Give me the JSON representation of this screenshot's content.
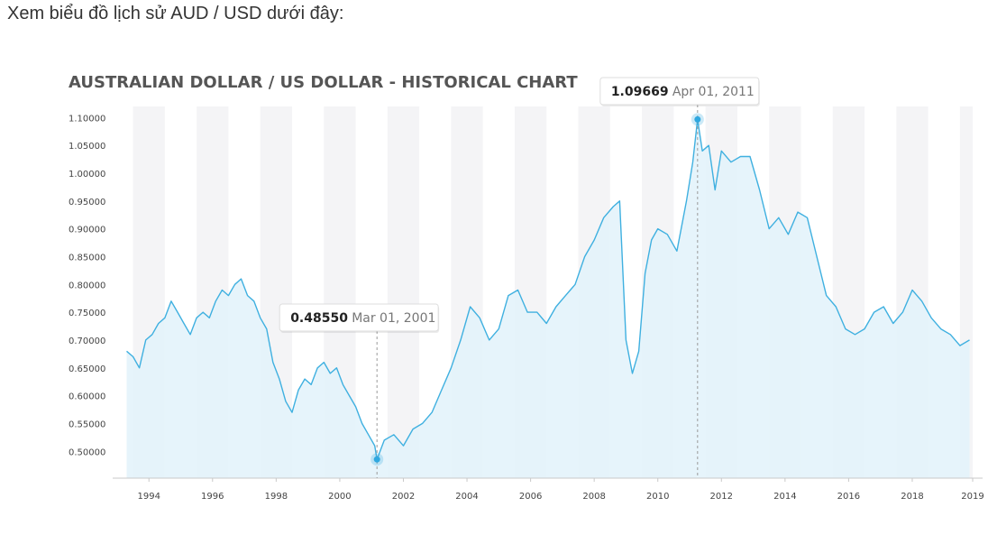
{
  "intro_text": "Xem biểu đồ lịch sử AUD / USD dưới đây:",
  "colors": {
    "line": "#3fb0e0",
    "area": "#e3f3fb",
    "band": "#f4f4f6",
    "marker": "#2fa8e0",
    "guide": "#9a9a9a"
  },
  "chart_data": {
    "type": "area",
    "title": "AUSTRALIAN DOLLAR / US DOLLAR - HISTORICAL CHART",
    "xlim": [
      1993.2,
      2019.9
    ],
    "ylim": [
      0.455,
      1.12
    ],
    "yticks": [
      "1.10000",
      "1.05000",
      "1.00000",
      "0.95000",
      "0.90000",
      "0.85000",
      "0.80000",
      "0.75000",
      "0.70000",
      "0.65000",
      "0.60000",
      "0.55000",
      "0.50000"
    ],
    "yticks_values": [
      1.1,
      1.05,
      1.0,
      0.95,
      0.9,
      0.85,
      0.8,
      0.75,
      0.7,
      0.65,
      0.6,
      0.55,
      0.5
    ],
    "xticks": [
      "1994",
      "1996",
      "1998",
      "2000",
      "2002",
      "2004",
      "2006",
      "2008",
      "2010",
      "2012",
      "2014",
      "2016",
      "2018",
      "2019"
    ],
    "xticks_values": [
      1994.0,
      1996.0,
      1998.0,
      2000.0,
      2002.0,
      2004.0,
      2006.0,
      2008.0,
      2010.0,
      2012.0,
      2014.0,
      2016.0,
      2018.0,
      2019.9
    ],
    "bands": [
      [
        1993.5,
        1994.5
      ],
      [
        1995.5,
        1996.5
      ],
      [
        1997.5,
        1998.5
      ],
      [
        1999.5,
        2000.5
      ],
      [
        2001.5,
        2002.5
      ],
      [
        2003.5,
        2004.5
      ],
      [
        2005.5,
        2006.5
      ],
      [
        2007.5,
        2008.5
      ],
      [
        2009.5,
        2010.5
      ],
      [
        2011.5,
        2012.5
      ],
      [
        2013.5,
        2014.5
      ],
      [
        2015.5,
        2016.5
      ],
      [
        2017.5,
        2018.5
      ],
      [
        2019.5,
        2019.9
      ]
    ],
    "grid": false,
    "series": [
      {
        "x": [
          1993.3,
          1993.5,
          1993.7,
          1993.9,
          1994.1,
          1994.3,
          1994.5,
          1994.7,
          1994.9,
          1995.1,
          1995.3,
          1995.5,
          1995.7,
          1995.9,
          1996.1,
          1996.3,
          1996.5,
          1996.7,
          1996.9,
          1997.1,
          1997.3,
          1997.5,
          1997.7,
          1997.9,
          1998.1,
          1998.3,
          1998.5,
          1998.7,
          1998.9,
          1999.1,
          1999.3,
          1999.5,
          1999.7,
          1999.9,
          2000.1,
          2000.3,
          2000.5,
          2000.7,
          2000.9,
          2001.1,
          2001.17,
          2001.4,
          2001.7,
          2002.0,
          2002.3,
          2002.6,
          2002.9,
          2003.2,
          2003.5,
          2003.8,
          2004.1,
          2004.4,
          2004.7,
          2005.0,
          2005.3,
          2005.6,
          2005.9,
          2006.2,
          2006.5,
          2006.8,
          2007.1,
          2007.4,
          2007.7,
          2008.0,
          2008.3,
          2008.6,
          2008.8,
          2009.0,
          2009.2,
          2009.4,
          2009.6,
          2009.8,
          2010.0,
          2010.3,
          2010.6,
          2010.9,
          2011.1,
          2011.25,
          2011.4,
          2011.6,
          2011.8,
          2012.0,
          2012.3,
          2012.6,
          2012.9,
          2013.2,
          2013.5,
          2013.8,
          2014.1,
          2014.4,
          2014.7,
          2015.0,
          2015.3,
          2015.6,
          2015.9,
          2016.2,
          2016.5,
          2016.8,
          2017.1,
          2017.4,
          2017.7,
          2018.0,
          2018.3,
          2018.6,
          2018.9,
          2019.2,
          2019.5,
          2019.8
        ],
        "y": [
          0.68,
          0.67,
          0.65,
          0.7,
          0.71,
          0.73,
          0.74,
          0.77,
          0.75,
          0.73,
          0.71,
          0.74,
          0.75,
          0.74,
          0.77,
          0.79,
          0.78,
          0.8,
          0.81,
          0.78,
          0.77,
          0.74,
          0.72,
          0.66,
          0.63,
          0.59,
          0.57,
          0.61,
          0.63,
          0.62,
          0.65,
          0.66,
          0.64,
          0.65,
          0.62,
          0.6,
          0.58,
          0.55,
          0.53,
          0.51,
          0.4855,
          0.52,
          0.53,
          0.51,
          0.54,
          0.55,
          0.57,
          0.61,
          0.65,
          0.7,
          0.76,
          0.74,
          0.7,
          0.72,
          0.78,
          0.79,
          0.75,
          0.75,
          0.73,
          0.76,
          0.78,
          0.8,
          0.85,
          0.88,
          0.92,
          0.94,
          0.95,
          0.7,
          0.64,
          0.68,
          0.82,
          0.88,
          0.9,
          0.89,
          0.86,
          0.95,
          1.02,
          1.09669,
          1.04,
          1.05,
          0.97,
          1.04,
          1.02,
          1.03,
          1.03,
          0.97,
          0.9,
          0.92,
          0.89,
          0.93,
          0.92,
          0.85,
          0.78,
          0.76,
          0.72,
          0.71,
          0.72,
          0.75,
          0.76,
          0.73,
          0.75,
          0.79,
          0.77,
          0.74,
          0.72,
          0.71,
          0.69,
          0.7
        ]
      }
    ],
    "annotations": [
      {
        "x": 2001.17,
        "y": 0.4855,
        "value": "0.48550",
        "date": "Mar 01, 2001"
      },
      {
        "x": 2011.25,
        "y": 1.09669,
        "value": "1.09669",
        "date": "Apr 01, 2011"
      }
    ]
  }
}
